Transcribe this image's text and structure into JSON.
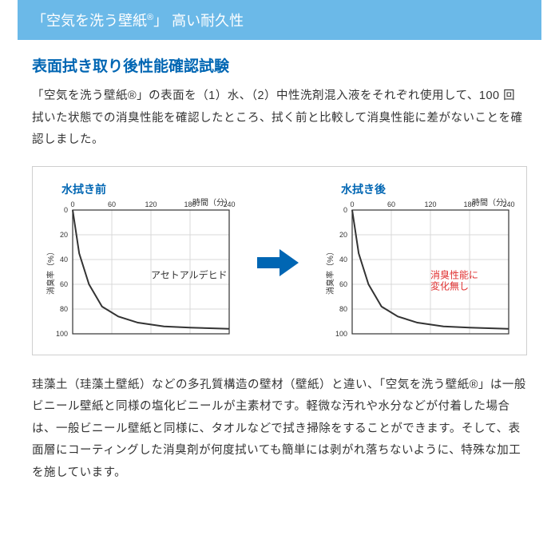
{
  "banner": {
    "text_pre": "「空気を洗う壁紙",
    "reg": "®",
    "text_post": "」 高い耐久性",
    "bg_color": "#6bb9e8",
    "fg_color": "#ffffff",
    "fontsize": 18
  },
  "subtitle": {
    "text": "表面拭き取り後性能確認試験",
    "color": "#0066b3",
    "fontsize": 19
  },
  "paragraph1": "「空気を洗う壁紙®」の表面を（1）水、（2）中性洗剤混入液をそれぞれ使用して、100 回拭いた状態での消臭性能を確認したところ、拭く前と比較して消臭性能に差がないことを確認しました。",
  "paragraph2": "珪藻土（珪藻土壁紙）などの多孔質構造の壁材（壁紙）と違い、「空気を洗う壁紙®」は一般ビニール壁紙と同様の塩化ビニールが主素材です。軽微な汚れや水分などが付着した場合は、一般ビニール壁紙と同様に、タオルなどで拭き掃除をすることができます。そして、表面層にコーティングした消臭剤が何度拭いても簡単には剥がれ落ちないように、特殊な加工を施しています。",
  "arrow_color": "#0066b3",
  "charts": {
    "type": "line",
    "xlabel": "時間（分）",
    "ylabel": "消臭率（%）",
    "xticks": [
      0,
      60,
      120,
      180,
      240
    ],
    "yticks": [
      0,
      20,
      40,
      60,
      80,
      100
    ],
    "xlim": [
      0,
      240
    ],
    "ylim": [
      0,
      100
    ],
    "grid_color": "#d8d8d8",
    "axis_color": "#333333",
    "line_color": "#333333",
    "line_width": 2,
    "label_fontsize": 10,
    "tick_fontsize": 9,
    "series": {
      "x": [
        0,
        10,
        25,
        45,
        70,
        100,
        140,
        180,
        240
      ],
      "y": [
        0,
        35,
        60,
        78,
        86,
        91,
        94,
        95,
        96
      ]
    },
    "left": {
      "title": "水拭き前",
      "annotation": "アセトアルデヒド",
      "annotation_color": "#333333"
    },
    "right": {
      "title": "水拭き後",
      "annotation": "消臭性能に\n変化無し",
      "annotation_color": "#e03030"
    }
  }
}
